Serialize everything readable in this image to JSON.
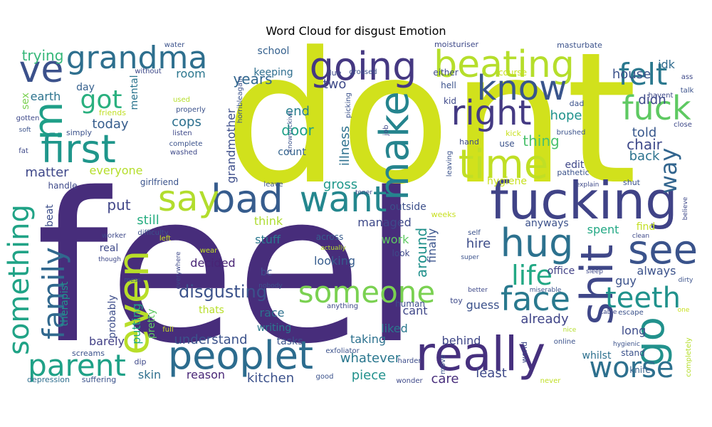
{
  "chart_data": {
    "type": "wordcloud",
    "title": "Word Cloud for disgust Emotion",
    "colormap": "viridis",
    "words": [
      {
        "text": "dont",
        "size": 5,
        "color": "#d1e11c"
      },
      {
        "text": "feel",
        "size": 5,
        "color": "#472d7b"
      },
      {
        "text": "fucking",
        "size": 4,
        "color": "#404387"
      },
      {
        "text": "peoplet",
        "size": 3,
        "color": "#2c6c8e"
      },
      {
        "text": "really",
        "size": 3,
        "color": "#46307e"
      },
      {
        "text": "going",
        "size": 3,
        "color": "#453882"
      },
      {
        "text": "beating",
        "size": 3,
        "color": "#b5de2b"
      },
      {
        "text": "grandma",
        "size": 3,
        "color": "#2e6f8e"
      },
      {
        "text": "ve",
        "size": 3,
        "color": "#3b518b"
      },
      {
        "text": "m",
        "size": 3,
        "color": "#1f9f88"
      },
      {
        "text": "first",
        "size": 3,
        "color": "#1f968b"
      },
      {
        "text": "time",
        "size": 3,
        "color": "#c0df25"
      },
      {
        "text": "right",
        "size": 3,
        "color": "#443a83"
      },
      {
        "text": "know",
        "size": 3,
        "color": "#39558c"
      },
      {
        "text": "make",
        "size": 3,
        "color": "#25848e"
      },
      {
        "text": "felt",
        "size": 3,
        "color": "#2a788e"
      },
      {
        "text": "fuck",
        "size": 3,
        "color": "#5ec962"
      },
      {
        "text": "bad",
        "size": 3,
        "color": "#365c8d"
      },
      {
        "text": "say",
        "size": 3,
        "color": "#b2dd2d"
      },
      {
        "text": "want",
        "size": 3,
        "color": "#24878e"
      },
      {
        "text": "hug",
        "size": 3,
        "color": "#2c718e"
      },
      {
        "text": "see",
        "size": 3,
        "color": "#3a538b"
      },
      {
        "text": "shit",
        "size": 3,
        "color": "#3f4788"
      },
      {
        "text": "go",
        "size": 3,
        "color": "#21918c"
      },
      {
        "text": "even",
        "size": 3,
        "color": "#b8de29"
      },
      {
        "text": "life",
        "size": 3,
        "color": "#22a884"
      },
      {
        "text": "someone",
        "size": 3,
        "color": "#7ad151"
      },
      {
        "text": "face",
        "size": 3,
        "color": "#29798e"
      },
      {
        "text": "teeth",
        "size": 3,
        "color": "#20928c"
      },
      {
        "text": "worse",
        "size": 3,
        "color": "#2d708e"
      },
      {
        "text": "family",
        "size": 3,
        "color": "#31688e"
      },
      {
        "text": "something",
        "size": 3,
        "color": "#20a386"
      },
      {
        "text": "parent",
        "size": 3,
        "color": "#1fa187"
      },
      {
        "text": "disgusting",
        "size": 2,
        "color": "#3b528b"
      },
      {
        "text": "got",
        "size": 2,
        "color": "#2ab07f"
      },
      {
        "text": "way",
        "size": 2,
        "color": "#32658e"
      },
      {
        "text": "trying",
        "size": 1,
        "color": "#35b779"
      },
      {
        "text": "years",
        "size": 1,
        "color": "#31678e"
      },
      {
        "text": "school",
        "size": 1,
        "color": "#34608d"
      },
      {
        "text": "keeping",
        "size": 1,
        "color": "#2e6e8e"
      },
      {
        "text": "two",
        "size": 1,
        "color": "#3e4a89"
      },
      {
        "text": "house",
        "size": 1,
        "color": "#3b528b"
      },
      {
        "text": "idk",
        "size": 1,
        "color": "#2f6b8e"
      },
      {
        "text": "didn",
        "size": 1,
        "color": "#3e4989"
      },
      {
        "text": "room",
        "size": 1,
        "color": "#2a768e"
      },
      {
        "text": "day",
        "size": 1,
        "color": "#35608d"
      },
      {
        "text": "sex",
        "size": 1,
        "color": "#7ad151"
      },
      {
        "text": "earth",
        "size": 1,
        "color": "#2c738e"
      },
      {
        "text": "mental",
        "size": 1,
        "color": "#2b748e"
      },
      {
        "text": "today",
        "size": 1,
        "color": "#365d8d"
      },
      {
        "text": "cops",
        "size": 1,
        "color": "#2d708e"
      },
      {
        "text": "end",
        "size": 1,
        "color": "#277f8e"
      },
      {
        "text": "door",
        "size": 1,
        "color": "#1fa088"
      },
      {
        "text": "count",
        "size": 1,
        "color": "#33638d"
      },
      {
        "text": "hope",
        "size": 1,
        "color": "#20928c"
      },
      {
        "text": "thing",
        "size": 1,
        "color": "#4ac16d"
      },
      {
        "text": "told",
        "size": 1,
        "color": "#38588c"
      },
      {
        "text": "chair",
        "size": 1,
        "color": "#3e4989"
      },
      {
        "text": "back",
        "size": 1,
        "color": "#2c738e"
      },
      {
        "text": "edit",
        "size": 1,
        "color": "#3f4788"
      },
      {
        "text": "matter",
        "size": 1,
        "color": "#3f4889"
      },
      {
        "text": "everyone",
        "size": 1,
        "color": "#b5de2b"
      },
      {
        "text": "grandmother",
        "size": 1,
        "color": "#3d4e8a"
      },
      {
        "text": "illness",
        "size": 1,
        "color": "#2d718e"
      },
      {
        "text": "gross",
        "size": 1,
        "color": "#1f988b"
      },
      {
        "text": "put",
        "size": 1,
        "color": "#404688"
      },
      {
        "text": "still",
        "size": 1,
        "color": "#27ad81"
      },
      {
        "text": "think",
        "size": 1,
        "color": "#addc30"
      },
      {
        "text": "stuff",
        "size": 1,
        "color": "#2a778e"
      },
      {
        "text": "outside",
        "size": 1,
        "color": "#3c4f8a"
      },
      {
        "text": "managed",
        "size": 1,
        "color": "#3e4989"
      },
      {
        "text": "work",
        "size": 1,
        "color": "#5ec962"
      },
      {
        "text": "around",
        "size": 1,
        "color": "#21918c"
      },
      {
        "text": "finally",
        "size": 1,
        "color": "#3a548c"
      },
      {
        "text": "hire",
        "size": 1,
        "color": "#3d4d8a"
      },
      {
        "text": "anyways",
        "size": 1,
        "color": "#3b518b"
      },
      {
        "text": "spent",
        "size": 1,
        "color": "#22a884"
      },
      {
        "text": "find",
        "size": 1,
        "color": "#c2df23"
      },
      {
        "text": "office",
        "size": 1,
        "color": "#424186"
      },
      {
        "text": "always",
        "size": 1,
        "color": "#3b528b"
      },
      {
        "text": "guy",
        "size": 1,
        "color": "#3b528b"
      },
      {
        "text": "decided",
        "size": 1,
        "color": "#482475"
      },
      {
        "text": "looking",
        "size": 1,
        "color": "#365c8d"
      },
      {
        "text": "real",
        "size": 1,
        "color": "#3e4989"
      },
      {
        "text": "bc",
        "size": 1,
        "color": "#3d4e8a"
      },
      {
        "text": "race",
        "size": 1,
        "color": "#2d718e"
      },
      {
        "text": "writing",
        "size": 1,
        "color": "#2a788e"
      },
      {
        "text": "probably",
        "size": 1,
        "color": "#3d4d8a"
      },
      {
        "text": "putting",
        "size": 1,
        "color": "#22a884"
      },
      {
        "text": "pretty",
        "size": 1,
        "color": "#5ec962"
      },
      {
        "text": "therapist",
        "size": 1,
        "color": "#21918c"
      },
      {
        "text": "thats",
        "size": 1,
        "color": "#b8de29"
      },
      {
        "text": "understand",
        "size": 1,
        "color": "#3b528b"
      },
      {
        "text": "already",
        "size": 1,
        "color": "#404588"
      },
      {
        "text": "cant",
        "size": 1,
        "color": "#3f4788"
      },
      {
        "text": "guess",
        "size": 1,
        "color": "#3b518b"
      },
      {
        "text": "barely",
        "size": 1,
        "color": "#424086"
      },
      {
        "text": "tasks",
        "size": 1,
        "color": "#3b528b"
      },
      {
        "text": "liked",
        "size": 1,
        "color": "#2a788e"
      },
      {
        "text": "behind",
        "size": 1,
        "color": "#3f4788"
      },
      {
        "text": "long",
        "size": 1,
        "color": "#3e4c8a"
      },
      {
        "text": "taking",
        "size": 1,
        "color": "#2c718e"
      },
      {
        "text": "whatever",
        "size": 1,
        "color": "#2a778e"
      },
      {
        "text": "least",
        "size": 1,
        "color": "#3e4989"
      },
      {
        "text": "care",
        "size": 1,
        "color": "#472d7b"
      },
      {
        "text": "piece",
        "size": 1,
        "color": "#21918c"
      },
      {
        "text": "kitchen",
        "size": 1,
        "color": "#3b518b"
      },
      {
        "text": "reason",
        "size": 1,
        "color": "#482576"
      },
      {
        "text": "skin",
        "size": 1,
        "color": "#2e6f8e"
      },
      {
        "text": "whilst",
        "size": 1,
        "color": "#2d708e"
      },
      {
        "text": "stand",
        "size": 1,
        "color": "#3b528b"
      },
      {
        "text": "knife",
        "size": 1,
        "color": "#34618d"
      },
      {
        "text": "hygiene",
        "size": 1,
        "color": "#c8e020"
      },
      {
        "text": "pathetic",
        "size": 1,
        "color": "#3b528b"
      },
      {
        "text": "handle",
        "size": 1,
        "color": "#3e4989"
      },
      {
        "text": "beat",
        "size": 1,
        "color": "#3d4e8a"
      },
      {
        "text": "girlfriend",
        "size": 1,
        "color": "#3a538b"
      },
      {
        "text": "across",
        "size": 1,
        "color": "#365d8d"
      },
      {
        "text": "weeks",
        "size": 1,
        "color": "#c8e020"
      },
      {
        "text": "human",
        "size": 1,
        "color": "#3d4d8a"
      },
      {
        "text": "look",
        "size": 1,
        "color": "#3e4989"
      },
      {
        "text": "toy",
        "size": 1,
        "color": "#3e4a89"
      },
      {
        "text": "depression",
        "size": 1,
        "color": "#2e6e8e"
      },
      {
        "text": "suffering",
        "size": 1,
        "color": "#3b528b"
      },
      {
        "text": "screams",
        "size": 1,
        "color": "#3b528b"
      },
      {
        "text": "dip",
        "size": 1,
        "color": "#3e4989"
      },
      {
        "text": "exfoliator",
        "size": 1,
        "color": "#3b518b"
      },
      {
        "text": "harder",
        "size": 1,
        "color": "#3d4d8a"
      },
      {
        "text": "move",
        "size": 1,
        "color": "#3b528b"
      },
      {
        "text": "world",
        "size": 1,
        "color": "#3e4989"
      },
      {
        "text": "online",
        "size": 1,
        "color": "#3b528b"
      },
      {
        "text": "never",
        "size": 1,
        "color": "#c0df25"
      },
      {
        "text": "good",
        "size": 1,
        "color": "#3b528b"
      },
      {
        "text": "wonder",
        "size": 1,
        "color": "#3e4989"
      },
      {
        "text": "completely",
        "size": 1,
        "color": "#b5de2b"
      },
      {
        "text": "water",
        "size": 1,
        "color": "#3b528b"
      },
      {
        "text": "moisturiser",
        "size": 1,
        "color": "#3e4989"
      },
      {
        "text": "masturbate",
        "size": 1,
        "color": "#3b528b"
      },
      {
        "text": "without",
        "size": 1,
        "color": "#3e4989"
      },
      {
        "text": "horribleagain",
        "size": 1,
        "color": "#3b528b"
      },
      {
        "text": "due",
        "size": 1,
        "color": "#3e4989"
      },
      {
        "text": "grossed",
        "size": 1,
        "color": "#3b528b"
      },
      {
        "text": "either",
        "size": 1,
        "color": "#3e4989"
      },
      {
        "text": "course",
        "size": 1,
        "color": "#c8e020"
      },
      {
        "text": "hell",
        "size": 1,
        "color": "#3b528b"
      },
      {
        "text": "kid",
        "size": 1,
        "color": "#3e4989"
      },
      {
        "text": "picking",
        "size": 1,
        "color": "#3b528b"
      },
      {
        "text": "job",
        "size": 1,
        "color": "#3e4989"
      },
      {
        "text": "leaving",
        "size": 1,
        "color": "#3b528b"
      },
      {
        "text": "hand",
        "size": 1,
        "color": "#3e4989"
      },
      {
        "text": "use",
        "size": 1,
        "color": "#3b528b"
      },
      {
        "text": "kick",
        "size": 1,
        "color": "#c8e020"
      },
      {
        "text": "brushed",
        "size": 1,
        "color": "#3b528b"
      },
      {
        "text": "close",
        "size": 1,
        "color": "#3e4989"
      },
      {
        "text": "dad",
        "size": 1,
        "color": "#3b528b"
      },
      {
        "text": "havent",
        "size": 1,
        "color": "#3e4989"
      },
      {
        "text": "talk",
        "size": 1,
        "color": "#3b528b"
      },
      {
        "text": "ass",
        "size": 1,
        "color": "#3e4989"
      },
      {
        "text": "used",
        "size": 1,
        "color": "#b5de2b"
      },
      {
        "text": "properly",
        "size": 1,
        "color": "#3b528b"
      },
      {
        "text": "friends",
        "size": 1,
        "color": "#c0df25"
      },
      {
        "text": "listen",
        "size": 1,
        "color": "#3e4989"
      },
      {
        "text": "complete",
        "size": 1,
        "color": "#3b528b"
      },
      {
        "text": "washed",
        "size": 1,
        "color": "#3e4989"
      },
      {
        "text": "knowyuckive",
        "size": 1,
        "color": "#3b528b"
      },
      {
        "text": "gotten",
        "size": 1,
        "color": "#3e4989"
      },
      {
        "text": "soft",
        "size": 1,
        "color": "#3b528b"
      },
      {
        "text": "fat",
        "size": 1,
        "color": "#3e4989"
      },
      {
        "text": "simply",
        "size": 1,
        "color": "#3b528b"
      },
      {
        "text": "explain",
        "size": 1,
        "color": "#3e4989"
      },
      {
        "text": "shut",
        "size": 1,
        "color": "#3b528b"
      },
      {
        "text": "believe",
        "size": 1,
        "color": "#3e4989"
      },
      {
        "text": "leave",
        "size": 1,
        "color": "#3b528b"
      },
      {
        "text": "toner",
        "size": 1,
        "color": "#3e4989"
      },
      {
        "text": "self",
        "size": 1,
        "color": "#3b528b"
      },
      {
        "text": "clean",
        "size": 1,
        "color": "#3e4989"
      },
      {
        "text": "super",
        "size": 1,
        "color": "#3b528b"
      },
      {
        "text": "sleep",
        "size": 1,
        "color": "#3e4989"
      },
      {
        "text": "dirty",
        "size": 1,
        "color": "#3b528b"
      },
      {
        "text": "better",
        "size": 1,
        "color": "#3e4989"
      },
      {
        "text": "miserable",
        "size": 1,
        "color": "#3b528b"
      },
      {
        "text": "table",
        "size": 1,
        "color": "#3e4989"
      },
      {
        "text": "escape",
        "size": 1,
        "color": "#3b528b"
      },
      {
        "text": "one",
        "size": 1,
        "color": "#c8e020"
      },
      {
        "text": "nice",
        "size": 1,
        "color": "#b5de2b"
      },
      {
        "text": "hygienic",
        "size": 1,
        "color": "#3b528b"
      },
      {
        "text": "worker",
        "size": 1,
        "color": "#3e4989"
      },
      {
        "text": "difficulty",
        "size": 1,
        "color": "#3b528b"
      },
      {
        "text": "left",
        "size": 1,
        "color": "#c8e020"
      },
      {
        "text": "though",
        "size": 1,
        "color": "#3e4989"
      },
      {
        "text": "mess",
        "size": 1,
        "color": "#3b528b"
      },
      {
        "text": "wear",
        "size": 1,
        "color": "#c0df25"
      },
      {
        "text": "everywhere",
        "size": 1,
        "color": "#3e4989"
      },
      {
        "text": "nobody",
        "size": 1,
        "color": "#3b528b"
      },
      {
        "text": "anything",
        "size": 1,
        "color": "#3e4989"
      },
      {
        "text": "actually",
        "size": 1,
        "color": "#b5de2b"
      },
      {
        "text": "full",
        "size": 1,
        "color": "#c8e020"
      }
    ]
  }
}
